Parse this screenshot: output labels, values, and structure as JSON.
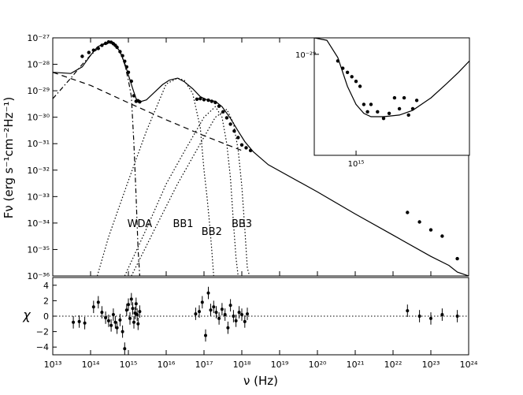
{
  "chart_data": [
    {
      "id": "sed",
      "type": "scatter",
      "scale": {
        "x": "log",
        "y": "log"
      },
      "xlim": [
        10000000000000.0,
        1e+24
      ],
      "ylim": [
        1e-36,
        1e-27
      ],
      "ylabel": "Fν (erg s⁻¹cm⁻²Hz⁻¹)",
      "y_ticks": [
        "10⁻²⁷",
        "10⁻²⁸",
        "10⁻²⁹",
        "10⁻³⁰",
        "10⁻³¹",
        "10⁻³²",
        "10⁻³³",
        "10⁻³⁴",
        "10⁻³⁵",
        "10⁻³⁶"
      ],
      "annotations": [
        {
          "text": "WDA",
          "x": 2000000000000000.0,
          "y": 1e-34
        },
        {
          "text": "BB1",
          "x": 2.8e+16,
          "y": 1e-34
        },
        {
          "text": "BB2",
          "x": 1.6e+17,
          "y": 5e-35
        },
        {
          "text": "BB3",
          "x": 1e+18,
          "y": 1e-34
        }
      ],
      "series": [
        {
          "style": "points",
          "x": [
            60000000000000.0,
            90000000000000.0,
            120000000000000.0,
            160000000000000.0,
            200000000000000.0,
            250000000000000.0,
            300000000000000.0,
            350000000000000.0,
            400000000000000.0,
            450000000000000.0,
            500000000000000.0,
            600000000000000.0,
            700000000000000.0,
            800000000000000.0,
            900000000000000.0,
            1000000000000000.0,
            1200000000000000.0,
            1400000000000000.0,
            1600000000000000.0,
            1800000000000000.0,
            2000000000000000.0,
            6.5e+16,
            8e+16,
            1e+17,
            1.3e+17,
            1.6e+17,
            2e+17,
            2.5e+17,
            3.2e+17,
            4e+17,
            5e+17,
            6.3e+17,
            8e+17,
            1e+18,
            1.3e+18,
            1.7e+18,
            2.4e+22,
            5e+22,
            1e+23,
            2e+23,
            5e+23
          ],
          "y": [
            2e-28,
            2.8e-28,
            3.4e-28,
            4e-28,
            5.2e-28,
            6.2e-28,
            7e-28,
            6.8e-28,
            6e-28,
            5.2e-28,
            4.4e-28,
            3e-28,
            2.1e-28,
            1.3e-28,
            8e-29,
            5e-29,
            2.3e-29,
            6.5e-30,
            4e-30,
            4.2e-30,
            3.8e-30,
            4.8e-30,
            5e-30,
            4.6e-30,
            4.4e-30,
            4e-30,
            3.6e-30,
            2.6e-30,
            1.6e-30,
            9.5e-31,
            5.5e-31,
            3e-31,
            1.7e-31,
            9e-32,
            7e-32,
            5.5e-32,
            2.5e-34,
            1.1e-34,
            5.5e-35,
            3.2e-35,
            4.5e-36
          ]
        },
        {
          "style": "solid",
          "x": [
            10000000000000.0,
            30000000000000.0,
            60000000000000.0,
            100000000000000.0,
            150000000000000.0,
            250000000000000.0,
            400000000000000.0,
            600000000000000.0,
            800000000000000.0,
            1000000000000000.0,
            1300000000000000.0,
            1600000000000000.0,
            2000000000000000.0,
            3000000000000000.0,
            5000000000000000.0,
            8000000000000000.0,
            1.2e+16,
            2e+16,
            3e+16,
            5e+16,
            8e+16,
            1.2e+17,
            2e+17,
            3e+17,
            5e+17,
            8e+17,
            1.2e+18,
            2e+18,
            5e+18,
            1e+20,
            1e+21,
            1e+22,
            1e+23,
            3e+23,
            5e+23,
            1e+24
          ],
          "y": [
            5e-29,
            4.5e-29,
            8e-29,
            2.2e-28,
            4.5e-28,
            6.5e-28,
            6.8e-28,
            3e-28,
            1.1e-28,
            4e-29,
            1.2e-29,
            5e-30,
            3.8e-30,
            4.5e-30,
            9e-30,
            1.7e-29,
            2.5e-29,
            3e-29,
            2.2e-29,
            1.2e-29,
            6e-30,
            4.5e-30,
            4e-30,
            2.5e-30,
            9e-31,
            3e-31,
            1.2e-31,
            5e-32,
            1.6e-32,
            1.5e-33,
            2.2e-34,
            3.5e-35,
            5.5e-36,
            2.5e-36,
            1.4e-36,
            1e-36
          ]
        },
        {
          "style": "dashed",
          "x": [
            10000000000000.0,
            100000000000000.0,
            1000000000000000.0,
            1e+16,
            1e+17,
            1e+18
          ],
          "y": [
            5e-29,
            1.6e-29,
            3.5e-30,
            8e-31,
            2e-31,
            5.5e-32
          ]
        },
        {
          "style": "dashdot",
          "x": [
            10000000000000.0,
            30000000000000.0,
            60000000000000.0,
            100000000000000.0,
            200000000000000.0,
            400000000000000.0,
            600000000000000.0,
            800000000000000.0,
            1000000000000000.0,
            1200000000000000.0,
            1400000000000000.0,
            1600000000000000.0,
            1800000000000000.0,
            2000000000000000.0
          ],
          "y": [
            5e-30,
            3e-29,
            1e-28,
            2.2e-28,
            5.5e-28,
            6.5e-28,
            3e-28,
            1e-28,
            2.5e-29,
            6e-30,
            1e-31,
            1e-33,
            1e-35,
            1e-36
          ]
        },
        {
          "style": "dotted",
          "x": [
            150000000000000.0,
            300000000000000.0,
            1000000000000000.0,
            3000000000000000.0,
            1e+16,
            2e+16,
            3e+16,
            5e+16,
            8e+16,
            1e+17,
            1.2e+17,
            1.4e+17,
            1.6e+17,
            1.8e+17
          ],
          "y": [
            1e-36,
            3e-35,
            4e-33,
            3e-31,
            1.8e-29,
            3e-29,
            2.5e-29,
            8e-30,
            4e-31,
            1e-32,
            1e-33,
            1e-34,
            1e-35,
            1e-36
          ]
        },
        {
          "style": "dotted",
          "x": [
            800000000000000.0,
            3000000000000000.0,
            1e+16,
            3e+16,
            1e+17,
            2e+17,
            3e+17,
            4e+17,
            5e+17,
            6e+17,
            7e+17,
            8e+17
          ],
          "y": [
            1e-36,
            6e-35,
            3e-33,
            5e-32,
            1e-30,
            2.5e-30,
            1e-30,
            1e-31,
            5e-33,
            1e-34,
            5e-36,
            1e-36
          ]
        },
        {
          "style": "dotted",
          "x": [
            1200000000000000.0,
            5000000000000000.0,
            2e+16,
            8e+16,
            2e+17,
            4e+17,
            6e+17,
            8e+17,
            1e+18,
            1.2e+18,
            1.4e+18,
            1.6e+18
          ],
          "y": [
            1e-36,
            6e-35,
            3e-33,
            1e-31,
            1e-30,
            2e-30,
            6e-31,
            6e-32,
            2.5e-33,
            6e-35,
            2e-36,
            1e-36
          ]
        }
      ]
    },
    {
      "id": "inset",
      "type": "scatter",
      "scale": {
        "x": "log",
        "y": "log"
      },
      "xlim": [
        600000000000000.0,
        4000000000000000.0
      ],
      "ylim": [
        2e-30,
        1.3e-29
      ],
      "x_ticks": [
        "10¹⁵"
      ],
      "y_ticks": [
        "10⁻²⁹"
      ],
      "series": [
        {
          "style": "points",
          "x": [
            800000000000000.0,
            850000000000000.0,
            900000000000000.0,
            950000000000000.0,
            1000000000000000.0,
            1050000000000000.0,
            1100000000000000.0,
            1150000000000000.0,
            1200000000000000.0,
            1300000000000000.0,
            1400000000000000.0,
            1500000000000000.0,
            1600000000000000.0,
            1700000000000000.0,
            1800000000000000.0,
            1900000000000000.0,
            2000000000000000.0,
            2100000000000000.0
          ],
          "y": [
            9e-30,
            8e-30,
            7.5e-30,
            7e-30,
            6.5e-30,
            6e-30,
            4.5e-30,
            4e-30,
            4.5e-30,
            4e-30,
            3.6e-30,
            3.9e-30,
            5e-30,
            4.2e-30,
            5e-30,
            3.8e-30,
            4.2e-30,
            4.8e-30
          ]
        },
        {
          "style": "solid",
          "x": [
            600000000000000.0,
            700000000000000.0,
            800000000000000.0,
            900000000000000.0,
            1000000000000000.0,
            1100000000000000.0,
            1200000000000000.0,
            1400000000000000.0,
            1700000000000000.0,
            2000000000000000.0,
            2500000000000000.0,
            3000000000000000.0,
            3500000000000000.0,
            4000000000000000.0
          ],
          "y": [
            1.3e-29,
            1.25e-29,
            9.5e-30,
            6e-30,
            4.5e-30,
            3.9e-30,
            3.7e-30,
            3.7e-30,
            3.8e-30,
            4.1e-30,
            5e-30,
            6.2e-30,
            7.5e-30,
            9e-30
          ]
        }
      ]
    },
    {
      "id": "residuals",
      "type": "scatter",
      "scale": {
        "x": "log",
        "y": "linear"
      },
      "xlim": [
        10000000000000.0,
        1e+24
      ],
      "ylim": [
        -5,
        5
      ],
      "xlabel": "ν (Hz)",
      "ylabel": "χ",
      "x_ticks": [
        "10¹³",
        "10¹⁴",
        "10¹⁵",
        "10¹⁶",
        "10¹⁷",
        "10¹⁸",
        "10¹⁹",
        "10²⁰",
        "10²¹",
        "10²²",
        "10²³",
        "10²⁴"
      ],
      "y_ticks": [
        "4",
        "2",
        "0",
        "−2",
        "−4"
      ],
      "series": [
        {
          "style": "points",
          "x": [
            35000000000000.0,
            50000000000000.0,
            70000000000000.0,
            120000000000000.0,
            160000000000000.0,
            200000000000000.0,
            250000000000000.0,
            300000000000000.0,
            350000000000000.0,
            400000000000000.0,
            450000000000000.0,
            500000000000000.0,
            600000000000000.0,
            700000000000000.0,
            800000000000000.0,
            900000000000000.0,
            1000000000000000.0,
            1100000000000000.0,
            1200000000000000.0,
            1300000000000000.0,
            1400000000000000.0,
            1500000000000000.0,
            1600000000000000.0,
            1700000000000000.0,
            1800000000000000.0,
            2000000000000000.0,
            6e+16,
            7.5e+16,
            9e+16,
            1.1e+17,
            1.3e+17,
            1.5e+17,
            1.8e+17,
            2.1e+17,
            2.5e+17,
            3e+17,
            3.6e+17,
            4.3e+17,
            5e+17,
            6e+17,
            7e+17,
            8.5e+17,
            1e+18,
            1.2e+18,
            1.4e+18,
            2.4e+22,
            5e+22,
            1e+23,
            2e+23,
            5e+23
          ],
          "y": [
            -0.8,
            -0.7,
            -0.9,
            1.2,
            1.8,
            0.5,
            -0.2,
            -0.6,
            -1.2,
            0.2,
            -0.8,
            -1.5,
            -0.5,
            -2.0,
            -4.2,
            0.8,
            1.5,
            -0.3,
            2.2,
            1.0,
            -0.8,
            0.4,
            1.6,
            0.2,
            -1.0,
            0.6,
            0.3,
            0.6,
            1.8,
            -2.5,
            3.0,
            0.8,
            1.2,
            0.5,
            -0.3,
            0.9,
            0.2,
            -1.5,
            1.4,
            0.0,
            -0.6,
            0.5,
            0.2,
            -0.7,
            0.3,
            0.7,
            0.0,
            -0.3,
            0.2,
            0.0
          ]
        }
      ]
    }
  ]
}
